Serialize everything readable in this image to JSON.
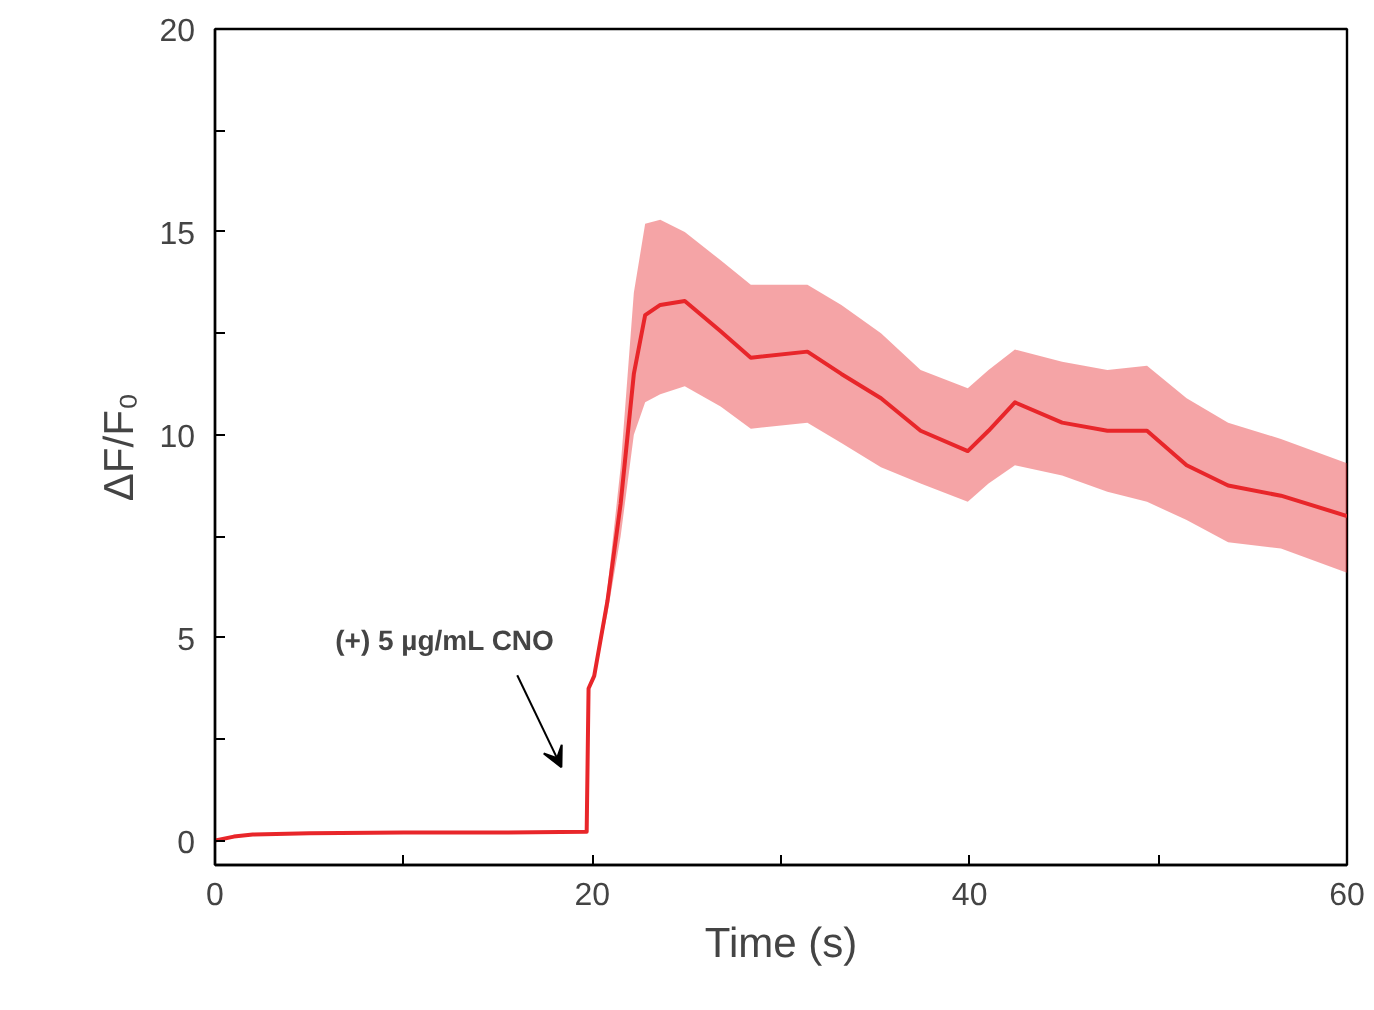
{
  "chart_data": {
    "type": "line",
    "xlabel": "Time (s)",
    "ylabel": "ΔF/F₀",
    "x": [
      0,
      1,
      2,
      5,
      10,
      15,
      19.7,
      19.8,
      20.1,
      20.8,
      21.5,
      22.2,
      22.8,
      23.6,
      24.9,
      26.8,
      28.4,
      31.4,
      33.2,
      35.3,
      37.4,
      39.9,
      41,
      42.4,
      44.9,
      47.3,
      49.4,
      51.5,
      53.7,
      56.5,
      60
    ],
    "series": [
      {
        "color": "#e8262a",
        "values": [
          0.0,
          0.1,
          0.15,
          0.18,
          0.2,
          0.2,
          0.22,
          3.75,
          4.06,
          5.9,
          8.3,
          11.5,
          12.95,
          13.2,
          13.3,
          12.55,
          11.9,
          12.05,
          11.5,
          10.9,
          10.1,
          9.6,
          10.1,
          10.8,
          10.3,
          10.1,
          10.1,
          9.25,
          8.75,
          8.5,
          8.0
        ],
        "lower": [
          0.0,
          0.1,
          0.15,
          0.18,
          0.2,
          0.2,
          0.22,
          3.75,
          4.06,
          5.6,
          7.5,
          10.0,
          10.8,
          11.0,
          11.2,
          10.7,
          10.15,
          10.3,
          9.8,
          9.2,
          8.8,
          8.35,
          8.8,
          9.25,
          9.0,
          8.6,
          8.35,
          7.9,
          7.35,
          7.2,
          6.6
        ],
        "upper": [
          0.0,
          0.1,
          0.15,
          0.18,
          0.2,
          0.2,
          0.22,
          3.75,
          4.06,
          6.2,
          9.2,
          13.5,
          15.2,
          15.3,
          15.0,
          14.3,
          13.7,
          13.7,
          13.2,
          12.5,
          11.6,
          11.15,
          11.6,
          12.1,
          11.8,
          11.6,
          11.7,
          10.9,
          10.3,
          9.9,
          9.3
        ]
      }
    ],
    "xlim": [
      0,
      60
    ],
    "ylim": [
      -0.6,
      20
    ],
    "xticks": [
      0,
      {
        "value": 10,
        "label": null
      },
      20,
      {
        "value": 30,
        "label": null
      },
      40,
      {
        "value": 50,
        "label": null
      },
      60
    ],
    "yticks": [
      0,
      {
        "value": 2.5,
        "label": null
      },
      5,
      {
        "value": 7.5,
        "label": null
      },
      10,
      {
        "value": 12.5,
        "label": null
      },
      15,
      {
        "value": 17.5,
        "label": null
      },
      20
    ],
    "annotations": [
      "(+) 5 µg/mL CNO"
    ]
  }
}
